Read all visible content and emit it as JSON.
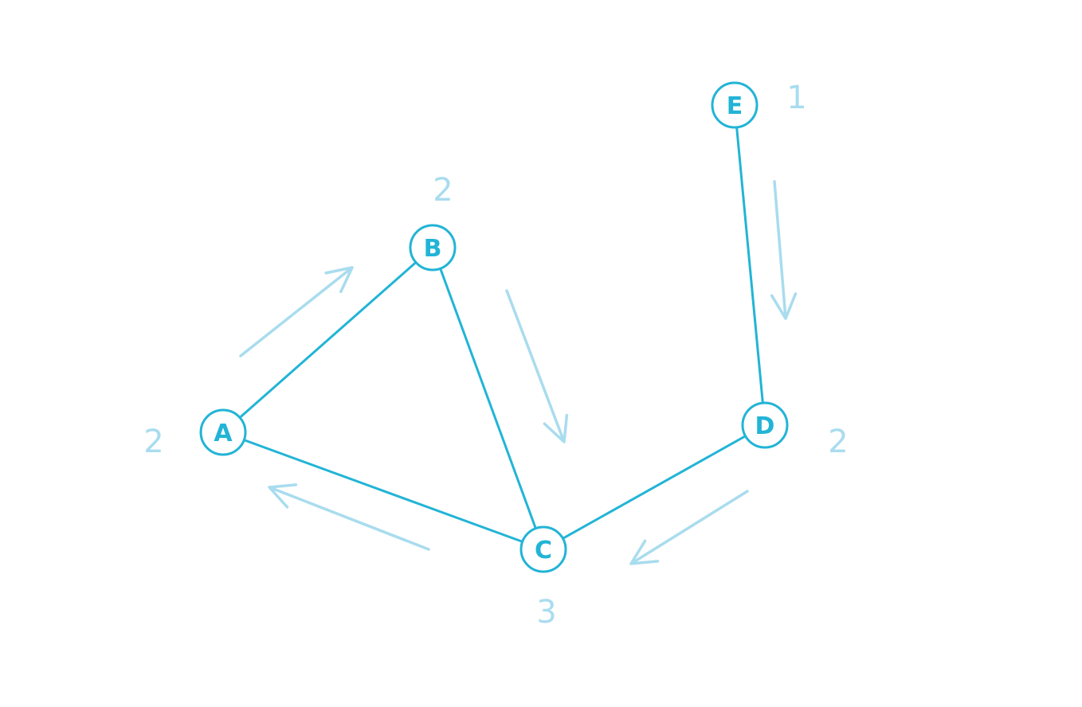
{
  "colors": {
    "edge": "#22b4d6",
    "node": "#22b4d6",
    "arrow": "#a9dcee",
    "weight": "#a9dcee",
    "background": "#ffffff"
  },
  "graph": {
    "nodes": [
      {
        "id": "A",
        "label": "A",
        "weight": "2"
      },
      {
        "id": "B",
        "label": "B",
        "weight": "2"
      },
      {
        "id": "C",
        "label": "C",
        "weight": "3"
      },
      {
        "id": "D",
        "label": "D",
        "weight": "2"
      },
      {
        "id": "E",
        "label": "E",
        "weight": "1"
      }
    ],
    "edges": [
      {
        "from": "A",
        "to": "B"
      },
      {
        "from": "B",
        "to": "C"
      },
      {
        "from": "C",
        "to": "A"
      },
      {
        "from": "C",
        "to": "D"
      },
      {
        "from": "D",
        "to": "E"
      }
    ],
    "traversal_arrows": [
      {
        "from": "A",
        "to": "B"
      },
      {
        "from": "B",
        "to": "C"
      },
      {
        "from": "C",
        "to": "A"
      },
      {
        "from": "D",
        "to": "C"
      },
      {
        "from": "E",
        "to": "D"
      }
    ]
  }
}
